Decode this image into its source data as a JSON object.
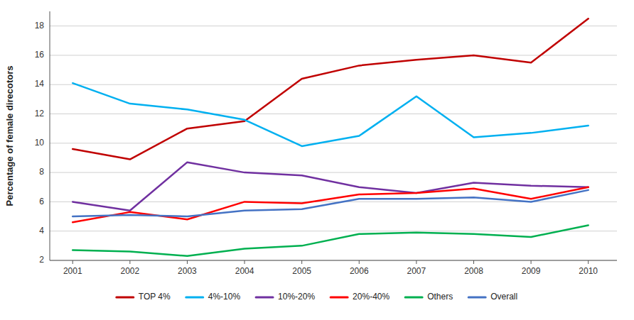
{
  "chart_data": {
    "type": "line",
    "ylabel": "Percentage of female direcotors",
    "x": [
      2001,
      2002,
      2003,
      2004,
      2005,
      2006,
      2007,
      2008,
      2009,
      2010
    ],
    "xlim": [
      2000.6,
      2010.5
    ],
    "xticks": [
      2001,
      2002,
      2003,
      2004,
      2005,
      2006,
      2007,
      2008,
      2009,
      2010
    ],
    "ylim": [
      2,
      19
    ],
    "yticks": [
      2,
      4,
      6,
      8,
      10,
      12,
      14,
      16,
      18
    ],
    "grid": true,
    "legend": "bottom",
    "series": [
      {
        "name": "TOP 4%",
        "color": "#C00000",
        "values": [
          9.6,
          8.9,
          11.0,
          11.5,
          14.4,
          15.3,
          15.7,
          16.0,
          15.5,
          18.5
        ]
      },
      {
        "name": "4%-10%",
        "color": "#00B0F0",
        "values": [
          14.1,
          12.7,
          12.3,
          11.6,
          9.8,
          10.5,
          13.2,
          10.4,
          10.7,
          11.2
        ]
      },
      {
        "name": "10%-20%",
        "color": "#7030A0",
        "values": [
          6.0,
          5.4,
          8.7,
          8.0,
          7.8,
          7.0,
          6.6,
          7.3,
          7.1,
          7.0
        ]
      },
      {
        "name": "20%-40%",
        "color": "#FF0000",
        "values": [
          4.6,
          5.3,
          4.8,
          6.0,
          5.9,
          6.5,
          6.6,
          6.9,
          6.2,
          7.0
        ]
      },
      {
        "name": "Others",
        "color": "#00B050",
        "values": [
          2.7,
          2.6,
          2.3,
          2.8,
          3.0,
          3.8,
          3.9,
          3.8,
          3.6,
          4.4
        ]
      },
      {
        "name": "Overall",
        "color": "#4472C4",
        "values": [
          5.0,
          5.1,
          5.0,
          5.4,
          5.5,
          6.2,
          6.2,
          6.3,
          6.0,
          6.8
        ]
      }
    ]
  }
}
